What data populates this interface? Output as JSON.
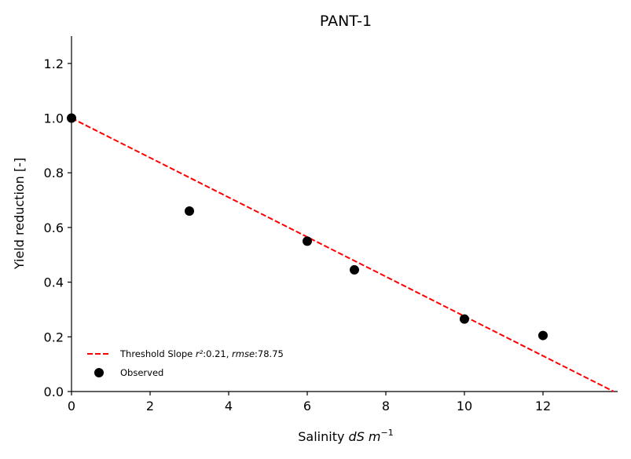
{
  "chart_data": {
    "type": "scatter",
    "title": "PANT-1",
    "xlabel": {
      "prefix": "Salinity ",
      "italic": "dS m",
      "superscript": "−1"
    },
    "ylabel": "Yield reduction [-]",
    "xlim": [
      0,
      13.9
    ],
    "ylim": [
      0,
      1.3
    ],
    "xticks": [
      "0",
      "2",
      "4",
      "6",
      "8",
      "10",
      "12"
    ],
    "xtick_values": [
      0,
      2,
      4,
      6,
      8,
      10,
      12
    ],
    "yticks": [
      "0.0",
      "0.2",
      "0.4",
      "0.6",
      "0.8",
      "1.0",
      "1.2"
    ],
    "ytick_values": [
      0.0,
      0.2,
      0.4,
      0.6,
      0.8,
      1.0,
      1.2
    ],
    "grid": false,
    "legend_position": "lower-left",
    "series": [
      {
        "name": "Observed",
        "kind": "scatter",
        "color": "#000000",
        "x": [
          0,
          3,
          6,
          7.2,
          10,
          12
        ],
        "y": [
          1.0,
          0.66,
          0.55,
          0.445,
          0.265,
          0.205
        ]
      },
      {
        "name_parts": {
          "prefix": "Threshold Slope ",
          "r_label": "r²",
          "r_value": ":0.21, ",
          "rmse_label": "rmse",
          "rmse_value": ":78.75"
        },
        "kind": "line",
        "style": "dashed",
        "color": "#ff0000",
        "x": [
          0,
          13.8
        ],
        "y": [
          1.0,
          0.0
        ]
      }
    ]
  }
}
